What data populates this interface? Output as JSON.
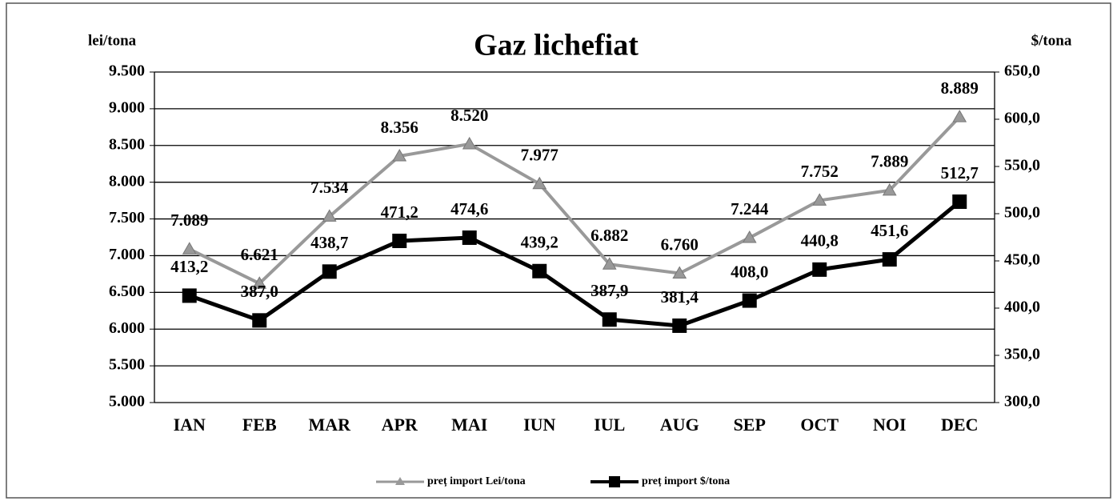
{
  "chart_data": {
    "type": "line",
    "title": "Gaz lichefiat",
    "ylabel": "lei/tona",
    "y2label": "$/tona",
    "categories": [
      "IAN",
      "FEB",
      "MAR",
      "APR",
      "MAI",
      "IUN",
      "IUL",
      "AUG",
      "SEP",
      "OCT",
      "NOI",
      "DEC"
    ],
    "series": [
      {
        "name": "preț import Lei/tona",
        "color": "#999999",
        "marker": "triangle",
        "values": [
          7089,
          6621,
          7534,
          8356,
          8520,
          7977,
          6882,
          6760,
          7244,
          7752,
          7889,
          8889
        ],
        "value_labels": [
          "7.089",
          "6.621",
          "7.534",
          "8.356",
          "8.520",
          "7.977",
          "6.882",
          "6.760",
          "7.244",
          "7.752",
          "7.889",
          "8.889"
        ]
      },
      {
        "name": "preț import $/tona",
        "color": "#000000",
        "marker": "square",
        "axis": "y2",
        "values": [
          413.2,
          387.0,
          438.7,
          471.2,
          474.6,
          439.2,
          387.9,
          381.4,
          408.0,
          440.8,
          451.6,
          512.7
        ],
        "value_labels": [
          "413,2",
          "387,0",
          "438,7",
          "471,2",
          "474,6",
          "439,2",
          "387,9",
          "381,4",
          "408,0",
          "440,8",
          "451,6",
          "512,7"
        ]
      }
    ],
    "ylim": [
      5000,
      9500
    ],
    "yticks": [
      {
        "value": 5000,
        "label": "5.000"
      },
      {
        "value": 5500,
        "label": "5.500"
      },
      {
        "value": 6000,
        "label": "6.000"
      },
      {
        "value": 6500,
        "label": "6.500"
      },
      {
        "value": 7000,
        "label": "7.000"
      },
      {
        "value": 7500,
        "label": "7.500"
      },
      {
        "value": 8000,
        "label": "8.000"
      },
      {
        "value": 8500,
        "label": "8.500"
      },
      {
        "value": 9000,
        "label": "9.000"
      },
      {
        "value": 9500,
        "label": "9.500"
      }
    ],
    "y2lim": [
      300,
      650
    ],
    "y2ticks": [
      {
        "value": 300,
        "label": "300,0"
      },
      {
        "value": 350,
        "label": "350,0"
      },
      {
        "value": 400,
        "label": "400,0"
      },
      {
        "value": 450,
        "label": "450,0"
      },
      {
        "value": 500,
        "label": "500,0"
      },
      {
        "value": 550,
        "label": "550,0"
      },
      {
        "value": 600,
        "label": "600,0"
      },
      {
        "value": 650,
        "label": "650,0"
      }
    ],
    "grid": true,
    "legend": "bottom"
  }
}
